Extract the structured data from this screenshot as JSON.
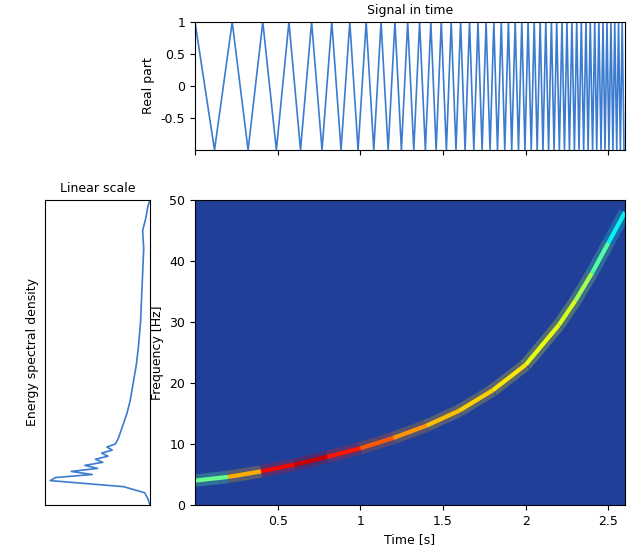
{
  "chart_data": [
    {
      "type": "line",
      "title": "Signal in time",
      "y_label": "Real part",
      "x": [
        0,
        0.118,
        0.225,
        0.321,
        0.41,
        0.492,
        0.568,
        0.638,
        0.705,
        0.768,
        0.827,
        0.883,
        0.936,
        0.986,
        1.035,
        1.081,
        1.125,
        1.168,
        1.209,
        1.248,
        1.286,
        1.323,
        1.358,
        1.393,
        1.426,
        1.458,
        1.489,
        1.52,
        1.549,
        1.578,
        1.606,
        1.633,
        1.66,
        1.686,
        1.711,
        1.736,
        1.76,
        1.784,
        1.807,
        1.829,
        1.852,
        1.873,
        1.895,
        1.915,
        1.936,
        1.956,
        1.976,
        1.995,
        2.014,
        2.033,
        2.051,
        2.069,
        2.087,
        2.104,
        2.121,
        2.138,
        2.155,
        2.171,
        2.187,
        2.203,
        2.219,
        2.234,
        2.249,
        2.264,
        2.279,
        2.294,
        2.308,
        2.322,
        2.336,
        2.35,
        2.364,
        2.377,
        2.39,
        2.404,
        2.417,
        2.429,
        2.442,
        2.455,
        2.467,
        2.479,
        2.491,
        2.503,
        2.515,
        2.527,
        2.538,
        2.55,
        2.561,
        2.572,
        2.583,
        2.594
      ],
      "values": [
        1,
        -1,
        1,
        -1,
        1,
        -1,
        1,
        -1,
        1,
        -1,
        1,
        -1,
        1,
        -1,
        1,
        -1,
        1,
        -1,
        1,
        -1,
        1,
        -1,
        1,
        -1,
        1,
        -1,
        1,
        -1,
        1,
        -1,
        1,
        -1,
        1,
        -1,
        1,
        -1,
        1,
        -1,
        1,
        -1,
        1,
        -1,
        1,
        -1,
        1,
        -1,
        1,
        -1,
        1,
        -1,
        1,
        -1,
        1,
        -1,
        1,
        -1,
        1,
        -1,
        1,
        -1,
        1,
        -1,
        1,
        -1,
        1,
        -1,
        1,
        -1,
        1,
        -1,
        1,
        -1,
        1,
        -1,
        1,
        -1,
        1,
        -1,
        1,
        -1,
        1,
        -1,
        1,
        -1,
        1,
        -1,
        1,
        -1,
        1,
        -1
      ],
      "color": "#3b7bd0",
      "xlim": [
        0,
        2.6
      ],
      "ylim": [
        -1,
        1
      ],
      "yticks": [
        -0.5,
        0,
        0.5,
        1
      ],
      "tick_labels": "y"
    },
    {
      "type": "line",
      "title": "Linear scale",
      "y_label": "Energy spectral density",
      "x": [
        0.0,
        0.02,
        0.05,
        0.25,
        0.6,
        0.95,
        0.9,
        0.55,
        0.75,
        0.5,
        0.62,
        0.45,
        0.52,
        0.4,
        0.46,
        0.36,
        0.41,
        0.33,
        0.3,
        0.28,
        0.26,
        0.24,
        0.22,
        0.19,
        0.16,
        0.13,
        0.11,
        0.09,
        0.08,
        0.07,
        0.06,
        0.07,
        0.04,
        0.02,
        0.0
      ],
      "values": [
        0,
        1,
        2,
        3,
        3.5,
        4,
        4.5,
        5,
        5.5,
        6,
        6.5,
        7,
        7.5,
        8,
        8.5,
        9,
        9.5,
        10,
        11,
        12,
        13,
        14,
        15,
        17,
        20,
        23,
        26,
        30,
        34,
        38,
        42,
        45,
        47,
        49,
        50
      ],
      "color": "#3b7bd0",
      "xlim": [
        1,
        0
      ],
      "ylim": [
        0,
        50
      ],
      "tick_labels": false
    },
    {
      "type": "ridge",
      "x_label": "Time [s]",
      "y_label": "Frequency [Hz]",
      "x": [
        0,
        0.2,
        0.4,
        0.6,
        0.8,
        1.0,
        1.2,
        1.4,
        1.6,
        1.8,
        2.0,
        2.2,
        2.3,
        2.4,
        2.5,
        2.6
      ],
      "values": [
        4,
        4.6,
        5.5,
        6.6,
        7.9,
        9.3,
        11.0,
        13.0,
        15.5,
        18.8,
        23.0,
        29.5,
        33.5,
        38.0,
        43.0,
        48.0
      ],
      "intensity": [
        0.35,
        0.6,
        0.85,
        0.95,
        0.92,
        0.85,
        0.78,
        0.72,
        0.7,
        0.68,
        0.65,
        0.62,
        0.6,
        0.5,
        0.4,
        0.32
      ],
      "xlim": [
        0,
        2.6
      ],
      "ylim": [
        0,
        50
      ],
      "xticks": [
        0.5,
        1,
        1.5,
        2,
        2.5
      ],
      "yticks": [
        0,
        10,
        20,
        30,
        40,
        50
      ]
    }
  ]
}
